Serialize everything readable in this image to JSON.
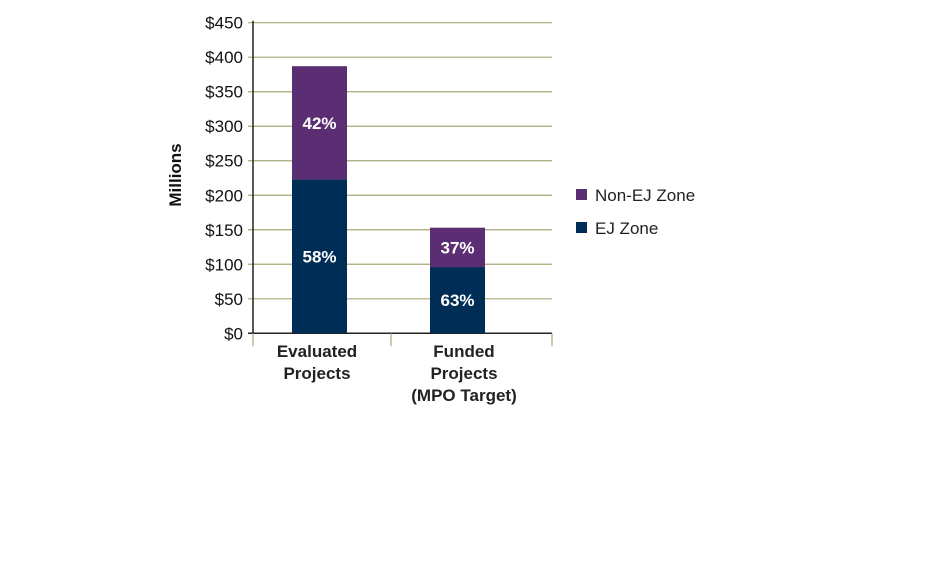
{
  "chart_data": {
    "type": "bar",
    "stacked": true,
    "title": "",
    "xlabel": "",
    "ylabel": "Millions",
    "ylim": [
      0,
      450
    ],
    "yticks": [
      0,
      50,
      100,
      150,
      200,
      250,
      300,
      350,
      400,
      450
    ],
    "ytick_labels": [
      "$0",
      "$50",
      "$100",
      "$150",
      "$200",
      "$250",
      "$300",
      "$350",
      "$400",
      "$450"
    ],
    "grid": true,
    "categories": [
      [
        "Evaluated",
        "Projects"
      ],
      [
        "Funded",
        "Projects",
        "(MPO Target)"
      ]
    ],
    "series": [
      {
        "name": "EJ Zone",
        "color": "#002d55",
        "values": [
          223,
          96
        ],
        "labels": [
          "58%",
          "63%"
        ]
      },
      {
        "name": "Non-EJ Zone",
        "color": "#5b2e74",
        "values": [
          164,
          57
        ],
        "labels": [
          "42%",
          "37%"
        ]
      }
    ],
    "legend": {
      "placement": "right",
      "order": [
        "Non-EJ Zone",
        "EJ Zone"
      ]
    }
  }
}
